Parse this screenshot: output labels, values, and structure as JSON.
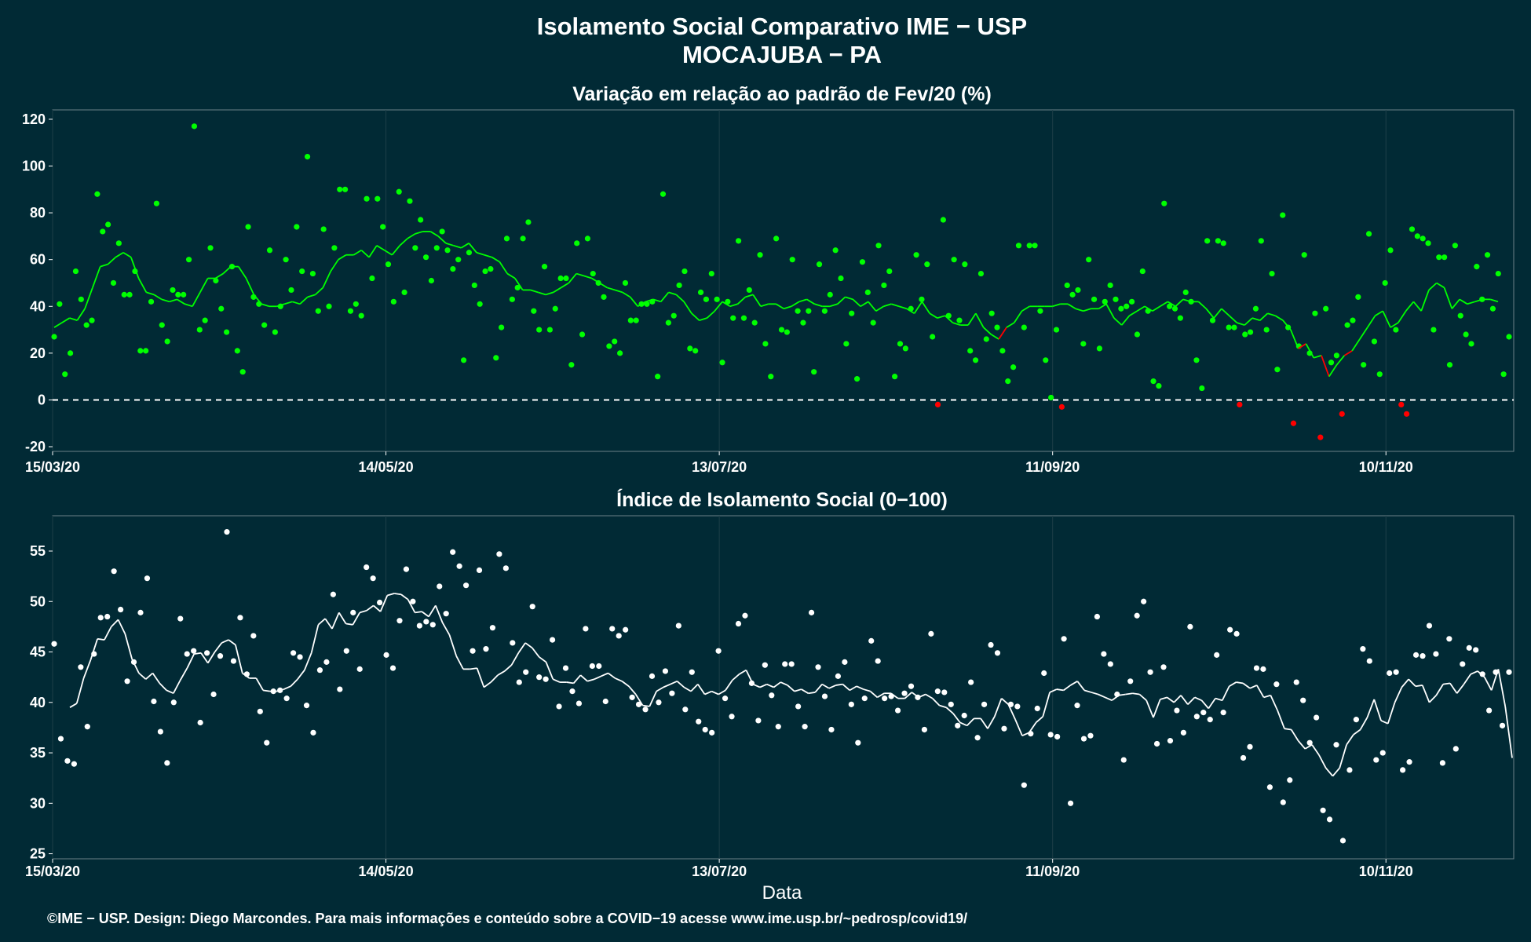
{
  "title_line1": "Isolamento Social Comparativo IME − USP",
  "title_line2": "MOCAJUBA − PA",
  "xlabel": "Data",
  "footer": "©IME − USP. Design: Diego Marcondes. Para mais informações e conteúdo sobre a COVID−19 acesse www.ime.usp.br/~pedrosp/covid19/",
  "colors": {
    "background": "#012a35",
    "positive": "#00ff00",
    "negative": "#ff0000",
    "index": "#ffffff",
    "grid": "#1d3f48"
  },
  "chart_data": [
    {
      "type": "scatter",
      "title": "Variação em relação ao padrão de Fev/20 (%)",
      "x_start": "2020-03-15",
      "x_tick_labels": [
        "15/03/20",
        "14/05/20",
        "13/07/20",
        "11/09/20",
        "10/11/20"
      ],
      "ylim": [
        -22,
        124
      ],
      "y_ticks": [
        -20,
        0,
        20,
        40,
        60,
        80,
        100,
        120
      ],
      "reference_line": 0,
      "series": [
        {
          "values": [
            27,
            41,
            11,
            20,
            55,
            43,
            32,
            34,
            88,
            72,
            75,
            50,
            67,
            45,
            45,
            55,
            21,
            21,
            42,
            84,
            32,
            25,
            47,
            45,
            45,
            60,
            117,
            30,
            34,
            65,
            51,
            39,
            29,
            57,
            21,
            12,
            74,
            44,
            41,
            32,
            64,
            29,
            40,
            60,
            47,
            74,
            55,
            104,
            54,
            38,
            73,
            40,
            65,
            90,
            90,
            38,
            41,
            36,
            86,
            52,
            86,
            74,
            58,
            42,
            89,
            46,
            85,
            65,
            77,
            61,
            51,
            65,
            72,
            64,
            56,
            60,
            17,
            63,
            49,
            41,
            55,
            56,
            18,
            31,
            69,
            43,
            48,
            69,
            76,
            38,
            30,
            57,
            30,
            39,
            52,
            52,
            15,
            67,
            28,
            69,
            54,
            50,
            44,
            23,
            25,
            20,
            50,
            34,
            34,
            41,
            41,
            42,
            10,
            88,
            33,
            36,
            49,
            55,
            22,
            21,
            46,
            43,
            54,
            43,
            16,
            42,
            35,
            68,
            35,
            47,
            33,
            62,
            24,
            10,
            69,
            30,
            29,
            60,
            38,
            33,
            38,
            12,
            58,
            38,
            45,
            64,
            52,
            24,
            37,
            9,
            59,
            46,
            33,
            66,
            49,
            55,
            10,
            24,
            22,
            39,
            62,
            43,
            58,
            27,
            -2,
            77,
            36,
            60,
            34,
            58,
            21,
            17,
            54,
            26,
            37,
            31,
            21,
            8,
            14,
            66,
            31,
            66,
            66,
            38,
            17,
            1,
            30,
            -3,
            49,
            45,
            47,
            24,
            60,
            43,
            22,
            42,
            49,
            43,
            39,
            40,
            42,
            28,
            55,
            38,
            8,
            6,
            84,
            40,
            39,
            35,
            46,
            42,
            17,
            5,
            68,
            34,
            68,
            67,
            31,
            31,
            -2,
            28,
            29,
            39,
            68,
            30,
            54,
            13,
            79,
            31,
            -10,
            23,
            62,
            20,
            37,
            -16,
            39,
            16,
            19,
            -6,
            32,
            34,
            44,
            15,
            71,
            25,
            11,
            50,
            64,
            30,
            -2,
            -6,
            73,
            70,
            69,
            67,
            30,
            61,
            61,
            15,
            66,
            36,
            28,
            24,
            57,
            43,
            62,
            39,
            54,
            11,
            27
          ],
          "colors": [
            "#00ff00",
            "#ff0000"
          ]
        },
        {
          "name": "",
          "values": [
            31,
            33,
            35,
            34,
            39,
            48,
            57,
            58,
            61,
            63,
            61,
            52,
            46,
            45,
            43,
            42,
            43,
            41,
            40,
            46,
            52,
            52,
            54,
            57,
            57,
            52,
            45,
            41,
            40,
            40,
            41,
            42,
            41,
            44,
            45,
            48,
            55,
            60,
            62,
            62,
            64,
            61,
            66,
            64,
            62,
            66,
            69,
            71,
            72,
            72,
            70,
            67,
            66,
            65,
            67,
            63,
            62,
            61,
            59,
            54,
            52,
            47,
            47,
            46,
            45,
            46,
            48,
            50,
            54,
            53,
            52,
            50,
            48,
            47,
            46,
            44,
            40,
            42,
            43,
            42,
            46,
            45,
            42,
            37,
            34,
            35,
            38,
            42,
            40,
            41,
            44,
            45,
            40,
            41,
            41,
            39,
            40,
            42,
            43,
            41,
            40,
            40,
            41,
            44,
            43,
            40,
            42,
            38,
            40,
            41,
            40,
            39,
            37,
            42,
            37,
            35,
            36,
            33,
            32,
            32,
            37,
            31,
            28,
            26,
            31,
            33,
            38,
            40,
            40,
            40,
            40,
            41,
            41,
            39,
            38,
            39,
            39,
            41,
            35,
            32,
            36,
            38,
            40,
            38,
            40,
            42,
            40,
            43,
            42,
            42,
            39,
            35,
            39,
            36,
            33,
            32,
            35,
            34,
            37,
            36,
            34,
            30,
            22,
            24,
            18,
            19,
            10,
            15,
            19,
            21,
            26,
            31,
            36,
            38,
            31,
            33,
            38,
            42,
            38,
            47,
            50,
            48,
            39,
            43,
            41,
            42,
            43,
            43,
            42
          ]
        }
      ]
    },
    {
      "type": "scatter",
      "title": "Índice de Isolamento Social (0−100)",
      "x_start": "2020-03-15",
      "x_tick_labels": [
        "15/03/20",
        "14/05/20",
        "13/07/20",
        "11/09/20",
        "10/11/20"
      ],
      "ylim": [
        24.5,
        58.5
      ],
      "y_ticks": [
        25,
        30,
        35,
        40,
        45,
        50,
        55
      ],
      "series": [
        {
          "values": [
            45.8,
            36.4,
            34.2,
            33.9,
            43.5,
            37.6,
            44.8,
            48.4,
            48.5,
            53.0,
            49.2,
            42.1,
            44.0,
            48.9,
            52.3,
            40.1,
            37.1,
            34.0,
            40.0,
            48.3,
            44.8,
            45.1,
            38.0,
            44.9,
            40.8,
            44.6,
            56.9,
            44.1,
            48.4,
            42.8,
            46.6,
            39.1,
            36.0,
            41.1,
            41.2,
            40.4,
            44.9,
            44.5,
            39.7,
            37.0,
            43.2,
            44.0,
            50.7,
            41.3,
            45.1,
            48.9,
            43.3,
            53.4,
            52.3,
            49.9,
            44.7,
            43.4,
            48.1,
            53.2,
            50.0,
            47.6,
            48.0,
            47.7,
            51.5,
            48.8,
            54.9,
            53.5,
            51.6,
            45.1,
            53.1,
            45.3,
            47.4,
            54.7,
            53.3,
            45.9,
            42.0,
            43.0,
            49.5,
            42.5,
            42.3,
            46.2,
            39.6,
            43.4,
            41.1,
            39.9,
            47.3,
            43.6,
            43.6,
            40.1,
            47.3,
            46.6,
            47.2,
            40.5,
            39.8,
            39.3,
            42.6,
            40.0,
            43.1,
            40.9,
            47.6,
            39.3,
            43.0,
            38.1,
            37.3,
            37.0,
            45.1,
            40.4,
            38.6,
            47.8,
            48.6,
            41.9,
            38.2,
            43.7,
            40.7,
            37.6,
            43.8,
            43.8,
            39.6,
            37.6,
            48.9,
            43.5,
            40.6,
            37.3,
            42.6,
            44.0,
            39.8,
            36.0,
            40.4,
            46.1,
            44.1,
            40.4,
            40.6,
            39.2,
            40.9,
            41.6,
            40.5,
            37.3,
            46.8,
            41.1,
            41.0,
            39.8,
            37.7,
            38.7,
            42.0,
            36.5,
            39.8,
            45.7,
            44.9,
            37.4,
            39.8,
            39.6,
            31.8,
            36.9,
            39.4,
            42.9,
            36.8,
            36.6,
            46.3,
            30.0,
            39.7,
            36.4,
            36.7,
            48.5,
            44.8,
            43.8,
            40.8,
            34.3,
            42.1,
            48.6,
            50.0,
            43.0,
            35.9,
            43.5,
            36.2,
            39.2,
            37.0,
            47.5,
            38.6,
            39.0,
            38.3,
            44.7,
            39.0,
            47.2,
            46.8,
            34.5,
            35.6,
            43.4,
            43.3,
            31.6,
            41.8,
            30.1,
            32.3,
            42.0,
            40.2,
            36.0,
            38.5,
            29.3,
            28.4,
            35.8,
            26.3,
            33.3,
            38.3,
            45.3,
            44.1,
            34.3,
            35.0,
            42.9,
            43.0,
            33.3,
            34.1,
            44.7,
            44.6,
            47.6,
            44.8,
            34.0,
            46.3,
            35.4,
            43.8,
            45.4,
            45.2,
            42.8,
            39.2,
            43.0,
            37.7,
            43.0
          ],
          "color": "#ffffff"
        },
        {
          "name": "",
          "values": [
            39.5,
            39.9,
            42.4,
            44.2,
            46.3,
            46.2,
            47.5,
            48.2,
            46.8,
            44.3,
            42.9,
            42.3,
            42.9,
            41.9,
            41.2,
            40.9,
            42.2,
            43.4,
            44.8,
            44.9,
            43.9,
            45.0,
            45.9,
            46.2,
            45.7,
            42.9,
            42.4,
            42.4,
            41.2,
            41.1,
            41.1,
            41.3,
            41.6,
            42.3,
            43.2,
            44.9,
            47.7,
            48.3,
            47.3,
            48.9,
            47.8,
            47.7,
            48.9,
            49.1,
            49.6,
            49.0,
            50.6,
            50.8,
            50.7,
            50.2,
            48.9,
            49.0,
            48.5,
            49.6,
            47.9,
            46.7,
            44.6,
            43.3,
            43.3,
            43.4,
            41.5,
            42.0,
            42.7,
            43.1,
            43.7,
            44.9,
            45.9,
            45.4,
            44.5,
            44.0,
            42.3,
            42.0,
            42.0,
            41.9,
            42.7,
            42.1,
            42.3,
            42.6,
            42.9,
            42.4,
            42.1,
            41.6,
            40.8,
            39.7,
            39.6,
            41.1,
            41.5,
            41.8,
            42.1,
            41.5,
            41.1,
            41.8,
            40.8,
            41.1,
            40.8,
            41.2,
            42.2,
            42.8,
            43.2,
            41.8,
            41.5,
            41.8,
            41.5,
            42.0,
            41.7,
            41.1,
            41.3,
            40.9,
            41.0,
            41.8,
            41.4,
            41.7,
            41.8,
            41.2,
            41.6,
            41.3,
            41.1,
            40.5,
            40.9,
            40.9,
            40.4,
            40.4,
            41.0,
            40.5,
            40.8,
            40.4,
            39.7,
            39.5,
            38.9,
            38.0,
            37.7,
            38.4,
            38.4,
            37.4,
            38.6,
            40.4,
            39.8,
            38.3,
            36.7,
            37.0,
            38.0,
            38.6,
            41.0,
            41.3,
            41.2,
            41.7,
            42.1,
            41.2,
            41.0,
            40.8,
            40.5,
            40.2,
            40.7,
            40.8,
            40.9,
            40.8,
            40.2,
            38.5,
            40.3,
            40.5,
            40.0,
            40.7,
            39.8,
            40.5,
            40.2,
            39.4,
            40.4,
            40.2,
            41.6,
            42.0,
            41.9,
            41.4,
            41.7,
            40.5,
            40.7,
            39.2,
            37.4,
            37.3,
            36.2,
            35.4,
            35.8,
            34.8,
            33.5,
            32.7,
            33.5,
            35.8,
            36.8,
            37.3,
            38.5,
            40.3,
            38.2,
            37.9,
            40.0,
            41.5,
            42.3,
            41.6,
            41.7,
            40.0,
            40.7,
            41.8,
            41.9,
            40.9,
            41.8,
            42.8,
            43.1,
            42.5,
            41.2,
            43.3,
            39.6,
            34.5
          ],
          "color": "#ffffff"
        }
      ]
    }
  ]
}
